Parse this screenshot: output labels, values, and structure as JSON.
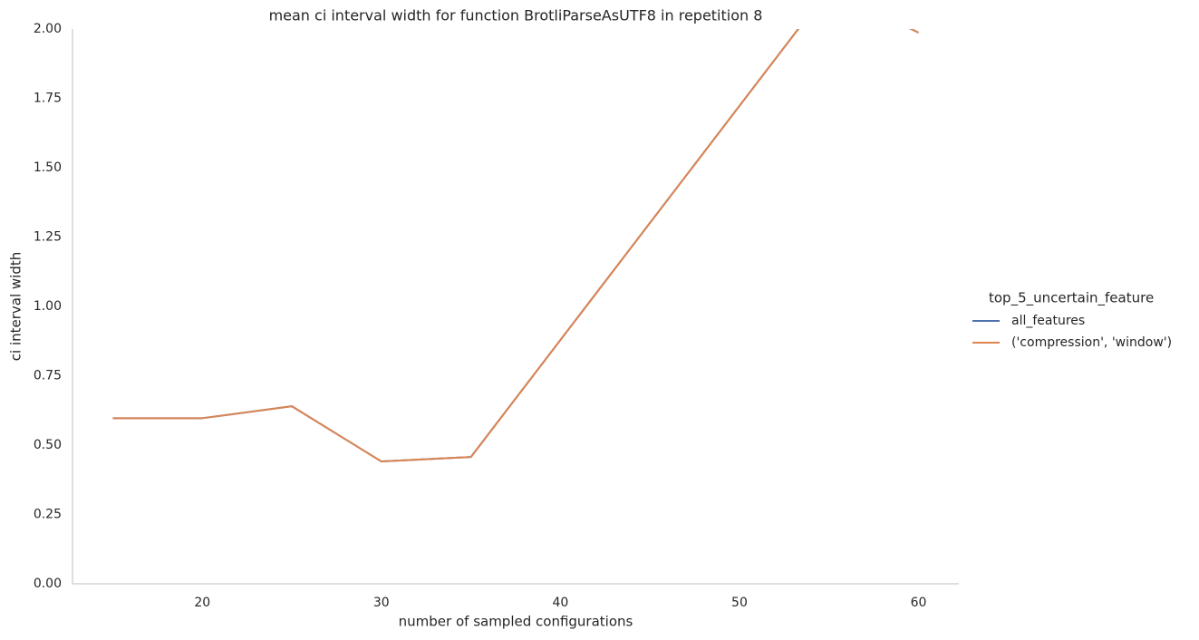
{
  "chart_data": {
    "type": "line",
    "title": "mean ci interval width for function BrotliParseAsUTF8 in repetition 8",
    "x_label": "number of sampled configurations",
    "y_label": "ci interval width",
    "x": [
      15,
      20,
      25,
      30,
      35,
      40,
      45,
      50,
      55,
      60
    ],
    "series": [
      {
        "name": "all_features",
        "color": "#4c72b0",
        "values": [
          0.597,
          0.597,
          0.64,
          0.441,
          0.457,
          0.879,
          1.301,
          1.723,
          2.145,
          1.987
        ]
      },
      {
        "name": "('compression', 'window')",
        "color": "#dd8452",
        "values": [
          0.597,
          0.597,
          0.64,
          0.441,
          0.457,
          0.879,
          1.301,
          1.723,
          2.145,
          1.987
        ]
      }
    ],
    "legend_title": "top_5_uncertain_feature",
    "legend": "right",
    "xlim": [
      12.75,
      62.25
    ],
    "ylim": [
      0,
      2
    ],
    "xticks": [
      20,
      30,
      40,
      50,
      60
    ],
    "yticks": [
      {
        "value": 0,
        "label": "0.00"
      },
      {
        "value": 0.25,
        "label": "0.25"
      },
      {
        "value": 0.5,
        "label": "0.50"
      },
      {
        "value": 0.75,
        "label": "0.75"
      },
      {
        "value": 1,
        "label": "1.00"
      },
      {
        "value": 1.25,
        "label": "1.25"
      },
      {
        "value": 1.5,
        "label": "1.50"
      },
      {
        "value": 1.75,
        "label": "1.75"
      },
      {
        "value": 2,
        "label": "2.00"
      }
    ],
    "grid": false
  }
}
